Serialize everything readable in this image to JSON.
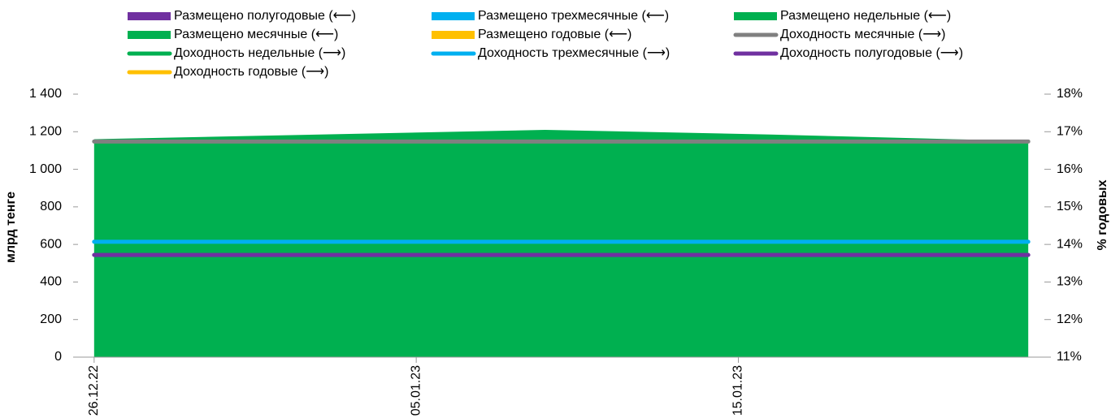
{
  "chart_data": {
    "type": "area_line",
    "ylabel": "млрд тенге",
    "y2label": "% годовых",
    "x": [
      0,
      7,
      14,
      21,
      29
    ],
    "xlim": [
      -0.5,
      29.5
    ],
    "xticks": [
      {
        "value": 0,
        "label": "26.12.22"
      },
      {
        "value": 10,
        "label": "05.01.23"
      },
      {
        "value": 20,
        "label": "15.01.23"
      }
    ],
    "ylim": [
      0,
      1400
    ],
    "yticks": [
      0,
      200,
      400,
      600,
      800,
      {
        "value": 1000,
        "label": "1 000"
      },
      {
        "value": 1200,
        "label": "1 200"
      },
      {
        "value": 1400,
        "label": "1 400"
      }
    ],
    "y2lim": [
      11,
      18
    ],
    "y2ticks": [
      {
        "value": 11,
        "label": "11%"
      },
      {
        "value": 12,
        "label": "12%"
      },
      {
        "value": 13,
        "label": "13%"
      },
      {
        "value": 14,
        "label": "14%"
      },
      {
        "value": 15,
        "label": "15%"
      },
      {
        "value": 16,
        "label": "16%"
      },
      {
        "value": 17,
        "label": "17%"
      },
      {
        "value": 18,
        "label": "18%"
      }
    ],
    "series": [
      {
        "name": "Размещено полугодовые (⟵)",
        "color": "#7030a0",
        "kind": "area",
        "values": [
          0,
          0,
          0,
          0,
          0
        ]
      },
      {
        "name": "Размещено трехмесячные (⟵)",
        "color": "#00b0f0",
        "kind": "area",
        "values": [
          0,
          0,
          0,
          0,
          0
        ]
      },
      {
        "name": "Размещено недельные (⟵)",
        "color": "#00b050",
        "kind": "area",
        "values": [
          1160,
          1185,
          1210,
          1185,
          1150
        ]
      },
      {
        "name": "Размещено месячные (⟵)",
        "color": "#00b050",
        "kind": "area",
        "values": [
          0,
          0,
          0,
          0,
          0
        ]
      },
      {
        "name": "Размещено годовые (⟵)",
        "color": "#ffc000",
        "kind": "area",
        "values": [
          0,
          0,
          0,
          0,
          0
        ]
      },
      {
        "name": "Доходность месячные (⟶)",
        "color": "#808080",
        "kind": "line",
        "axis": "y2",
        "values": [
          16.74,
          16.74,
          16.74,
          16.74,
          16.74
        ]
      },
      {
        "name": "Доходность недельные (⟶)",
        "color": "#00b050",
        "kind": "line",
        "axis": "y2",
        "values": [
          null,
          null,
          null,
          null,
          null
        ]
      },
      {
        "name": "Доходность трехмесячные (⟶)",
        "color": "#00b0f0",
        "kind": "line",
        "axis": "y2",
        "values": [
          14.07,
          14.07,
          14.07,
          14.07,
          14.07
        ]
      },
      {
        "name": "Доходность полугодовые (⟶)",
        "color": "#7030a0",
        "kind": "line",
        "axis": "y2",
        "values": [
          13.72,
          13.72,
          13.72,
          13.72,
          13.72
        ]
      },
      {
        "name": "Доходность годовые (⟶)",
        "color": "#ffc000",
        "kind": "line",
        "axis": "y2",
        "values": [
          null,
          null,
          null,
          null,
          null
        ]
      }
    ]
  }
}
